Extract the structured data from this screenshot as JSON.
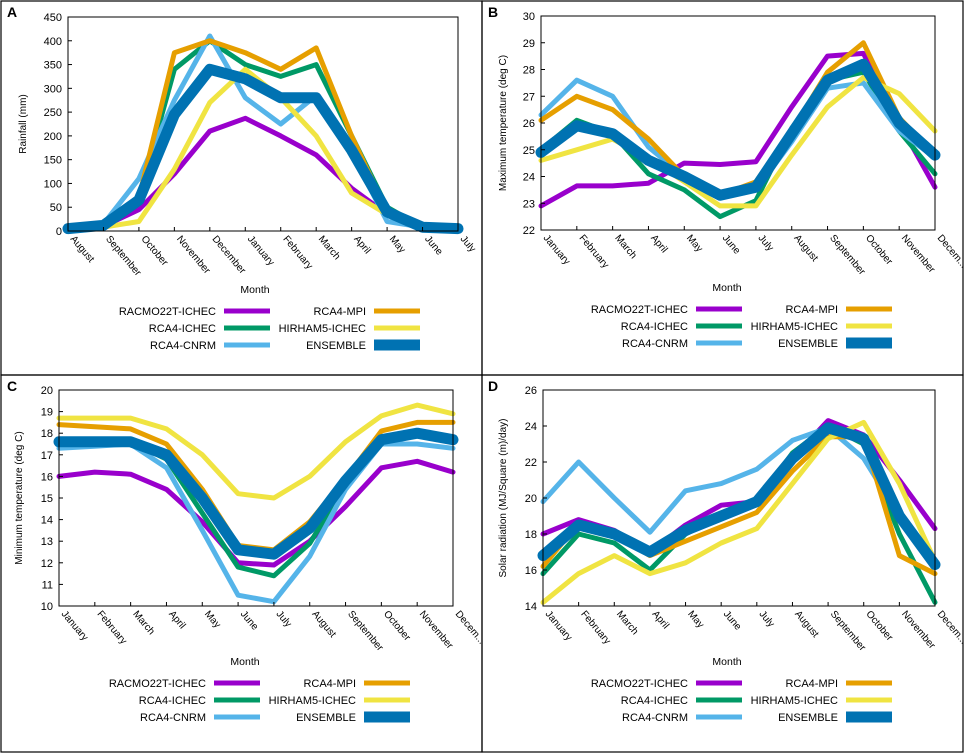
{
  "series_styles": [
    {
      "name": "RACMO22T-ICHEC",
      "color": "#9900CC"
    },
    {
      "name": "RCA4-ICHEC",
      "color": "#009966"
    },
    {
      "name": "RCA4-CNRM",
      "color": "#55B4E9"
    },
    {
      "name": "RCA4-MPI",
      "color": "#E69F00"
    },
    {
      "name": "HIRHAM5-ICHEC",
      "color": "#F0E442"
    },
    {
      "name": "ENSEMBLE",
      "color": "#0072B2"
    }
  ],
  "chart_data": [
    {
      "panel": "A",
      "type": "line",
      "title": "",
      "xlabel": "Month",
      "ylabel": "Rainfall (mm)",
      "ylim": [
        0,
        450
      ],
      "yticks": [
        0,
        50,
        100,
        150,
        200,
        250,
        300,
        350,
        400,
        450
      ],
      "categories": [
        "August",
        "September",
        "October",
        "November",
        "December",
        "January",
        "February",
        "March",
        "April",
        "May",
        "June",
        "July"
      ],
      "series": [
        {
          "name": "RACMO22T-ICHEC",
          "values": [
            5,
            10,
            45,
            120,
            210,
            237,
            200,
            160,
            90,
            35,
            8,
            5
          ]
        },
        {
          "name": "RCA4-ICHEC",
          "values": [
            5,
            10,
            70,
            340,
            400,
            350,
            325,
            350,
            200,
            50,
            8,
            5
          ]
        },
        {
          "name": "RCA4-CNRM",
          "values": [
            5,
            15,
            110,
            275,
            410,
            280,
            225,
            285,
            165,
            20,
            8,
            5
          ]
        },
        {
          "name": "RCA4-MPI",
          "values": [
            5,
            10,
            70,
            375,
            400,
            375,
            340,
            385,
            200,
            40,
            8,
            5
          ]
        },
        {
          "name": "HIRHAM5-ICHEC",
          "values": [
            5,
            8,
            20,
            130,
            270,
            340,
            280,
            200,
            80,
            35,
            8,
            5
          ]
        },
        {
          "name": "ENSEMBLE",
          "values": [
            5,
            12,
            65,
            245,
            340,
            320,
            280,
            280,
            170,
            40,
            8,
            5
          ]
        }
      ]
    },
    {
      "panel": "B",
      "type": "line",
      "title": "",
      "xlabel": "Month",
      "ylabel": "Maximum temperature (deg C)",
      "ylim": [
        22,
        30
      ],
      "yticks": [
        22,
        23,
        24,
        25,
        26,
        27,
        28,
        29,
        30
      ],
      "categories": [
        "January",
        "February",
        "March",
        "April",
        "May",
        "June",
        "July",
        "August",
        "September",
        "October",
        "November",
        "Decem..."
      ],
      "series": [
        {
          "name": "RACMO22T-ICHEC",
          "values": [
            22.9,
            23.65,
            23.65,
            23.75,
            24.5,
            24.45,
            24.55,
            26.6,
            28.5,
            28.6,
            26.0,
            23.6
          ]
        },
        {
          "name": "RCA4-ICHEC",
          "values": [
            25.0,
            26.1,
            25.6,
            24.1,
            23.5,
            22.5,
            23.1,
            25.8,
            27.6,
            27.9,
            25.7,
            24.1
          ]
        },
        {
          "name": "RCA4-CNRM",
          "values": [
            26.3,
            27.6,
            27.0,
            25.1,
            24.0,
            23.4,
            23.5,
            25.3,
            27.3,
            27.5,
            25.7,
            24.7
          ]
        },
        {
          "name": "RCA4-MPI",
          "values": [
            26.1,
            27.0,
            26.5,
            25.4,
            24.0,
            23.3,
            23.8,
            25.7,
            27.9,
            29.0,
            26.2,
            24.8
          ]
        },
        {
          "name": "HIRHAM5-ICHEC",
          "values": [
            24.6,
            25.0,
            25.4,
            24.7,
            23.8,
            22.9,
            22.9,
            24.8,
            26.6,
            27.7,
            27.1,
            25.7
          ]
        },
        {
          "name": "ENSEMBLE",
          "values": [
            24.9,
            25.9,
            25.6,
            24.6,
            24.0,
            23.3,
            23.6,
            25.6,
            27.6,
            28.2,
            26.0,
            24.8
          ]
        }
      ]
    },
    {
      "panel": "C",
      "type": "line",
      "title": "",
      "xlabel": "Month",
      "ylabel": "Minimum temperature (deg C)",
      "ylim": [
        10,
        20
      ],
      "yticks": [
        10,
        11,
        12,
        13,
        14,
        15,
        16,
        17,
        18,
        19,
        20
      ],
      "categories": [
        "January",
        "February",
        "March",
        "April",
        "May",
        "June",
        "July",
        "August",
        "September",
        "October",
        "November",
        "Decem..."
      ],
      "series": [
        {
          "name": "RACMO22T-ICHEC",
          "values": [
            16.0,
            16.2,
            16.1,
            15.4,
            13.9,
            12.0,
            11.9,
            13.0,
            14.6,
            16.4,
            16.7,
            16.2
          ]
        },
        {
          "name": "RCA4-ICHEC",
          "values": [
            17.6,
            17.7,
            17.6,
            16.8,
            14.3,
            11.8,
            11.4,
            12.9,
            15.6,
            17.7,
            17.9,
            17.8
          ]
        },
        {
          "name": "RCA4-CNRM",
          "values": [
            17.3,
            17.4,
            17.5,
            16.4,
            13.5,
            10.5,
            10.2,
            12.3,
            15.4,
            17.5,
            17.5,
            17.3
          ]
        },
        {
          "name": "RCA4-MPI",
          "values": [
            18.4,
            18.3,
            18.2,
            17.5,
            15.4,
            12.8,
            12.6,
            13.9,
            15.9,
            18.1,
            18.5,
            18.5
          ]
        },
        {
          "name": "HIRHAM5-ICHEC",
          "values": [
            18.7,
            18.7,
            18.7,
            18.2,
            17.0,
            15.2,
            15.0,
            16.0,
            17.6,
            18.8,
            19.3,
            18.9
          ]
        },
        {
          "name": "ENSEMBLE",
          "values": [
            17.6,
            17.6,
            17.6,
            17.0,
            15.0,
            12.6,
            12.4,
            13.6,
            15.8,
            17.7,
            18.0,
            17.7
          ]
        }
      ]
    },
    {
      "panel": "D",
      "type": "line",
      "title": "",
      "xlabel": "Month",
      "ylabel": "Solar radiation (MJ/Square (m)/day)",
      "ylim": [
        14,
        26
      ],
      "yticks": [
        14,
        16,
        18,
        20,
        22,
        24,
        26
      ],
      "categories": [
        "January",
        "February",
        "March",
        "April",
        "May",
        "June",
        "July",
        "August",
        "September",
        "October",
        "November",
        "Decem..."
      ],
      "series": [
        {
          "name": "RACMO22T-ICHEC",
          "values": [
            18.0,
            18.8,
            18.2,
            17.0,
            18.5,
            19.6,
            19.8,
            22.2,
            24.3,
            23.5,
            21.0,
            18.3
          ]
        },
        {
          "name": "RCA4-ICHEC",
          "values": [
            15.8,
            18.0,
            17.5,
            16.0,
            18.0,
            19.0,
            19.8,
            22.5,
            24.0,
            23.0,
            18.0,
            14.2
          ]
        },
        {
          "name": "RCA4-CNRM",
          "values": [
            19.8,
            22.0,
            20.0,
            18.1,
            20.4,
            20.8,
            21.6,
            23.2,
            23.9,
            22.2,
            19.0,
            16.3
          ]
        },
        {
          "name": "RCA4-MPI",
          "values": [
            16.2,
            18.6,
            18.0,
            16.8,
            17.6,
            18.4,
            19.2,
            21.5,
            23.4,
            23.4,
            16.8,
            15.8
          ]
        },
        {
          "name": "HIRHAM5-ICHEC",
          "values": [
            14.2,
            15.8,
            16.8,
            15.8,
            16.4,
            17.5,
            18.3,
            20.8,
            23.3,
            24.2,
            20.8,
            16.5
          ]
        },
        {
          "name": "ENSEMBLE",
          "values": [
            16.8,
            18.5,
            18.0,
            17.0,
            18.2,
            19.0,
            19.8,
            22.2,
            23.9,
            23.3,
            19.0,
            16.3
          ]
        }
      ]
    }
  ]
}
